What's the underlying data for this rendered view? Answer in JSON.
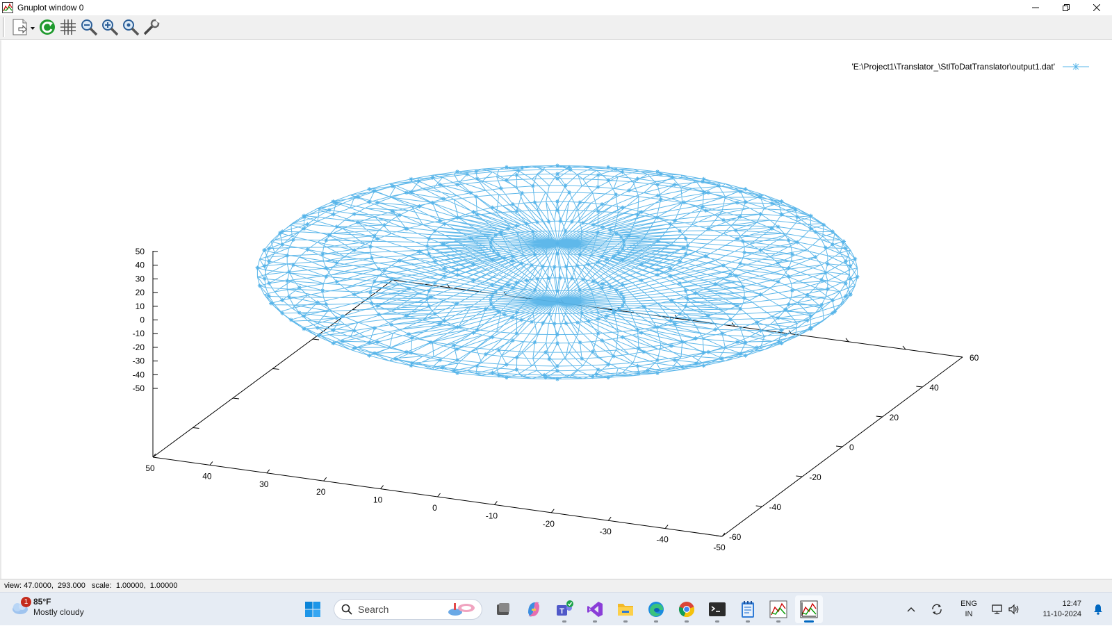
{
  "window": {
    "title": "Gnuplot window 0",
    "controls": [
      "minimize",
      "restore",
      "close"
    ]
  },
  "toolbar": {
    "buttons": [
      {
        "name": "copy-print-menu",
        "icon": "page-icon"
      },
      {
        "name": "replot",
        "icon": "refresh-icon"
      },
      {
        "name": "grid",
        "icon": "grid-icon"
      },
      {
        "name": "zoom-previous",
        "icon": "zoom-out-icon"
      },
      {
        "name": "zoom-next",
        "icon": "zoom-in-icon"
      },
      {
        "name": "autoscale",
        "icon": "zoom-reset-icon"
      },
      {
        "name": "options",
        "icon": "wrench-icon"
      }
    ]
  },
  "plot": {
    "legend_label": "'E:\\Project1\\Translator_\\StlToDatTranslator\\output1.dat'",
    "line_color": "#56b4e9",
    "z_ticks": [
      "50",
      "40",
      "30",
      "20",
      "10",
      "0",
      "-10",
      "-20",
      "-30",
      "-40",
      "-50"
    ],
    "x_ticks": [
      "50",
      "40",
      "30",
      "20",
      "10",
      "0",
      "-10",
      "-20",
      "-30",
      "-40",
      "-50"
    ],
    "y_ticks": [
      "-60",
      "-40",
      "-20",
      "0",
      "20",
      "40",
      "60"
    ]
  },
  "chart_data": {
    "type": "scatter",
    "title": "",
    "series": [
      {
        "name": "'E:\\Project1\\Translator_\\StlToDatTranslator\\output1.dat'",
        "style": "linespoints",
        "shape": "ellipsoid mesh",
        "x_range": [
          -50,
          50
        ],
        "y_range": [
          -60,
          60
        ],
        "z_range": [
          -10,
          10
        ]
      }
    ],
    "xlim": [
      -50,
      50
    ],
    "ylim": [
      -60,
      60
    ],
    "zlim": [
      -50,
      50
    ],
    "view_rot_x": 47,
    "view_rot_z": 293,
    "grid": false,
    "legend_position": "top-right"
  },
  "status": {
    "text": "view: 47.0000,  293.000   scale:  1.00000,  1.00000"
  },
  "taskbar": {
    "weather_temp": "85°F",
    "weather_desc": "Mostly cloudy",
    "weather_badge": "1",
    "search_placeholder": "Search",
    "apps": [
      "start-icon",
      "task-view-icon",
      "copilot-icon",
      "teams-icon",
      "visual-studio-icon",
      "file-explorer-icon",
      "edge-icon",
      "chrome-icon",
      "terminal-icon",
      "notepad-icon",
      "gnuplot-icon",
      "gnuplot-window-icon"
    ],
    "lang_line1": "ENG",
    "lang_line2": "IN",
    "time": "12:47",
    "date": "11-10-2024"
  }
}
